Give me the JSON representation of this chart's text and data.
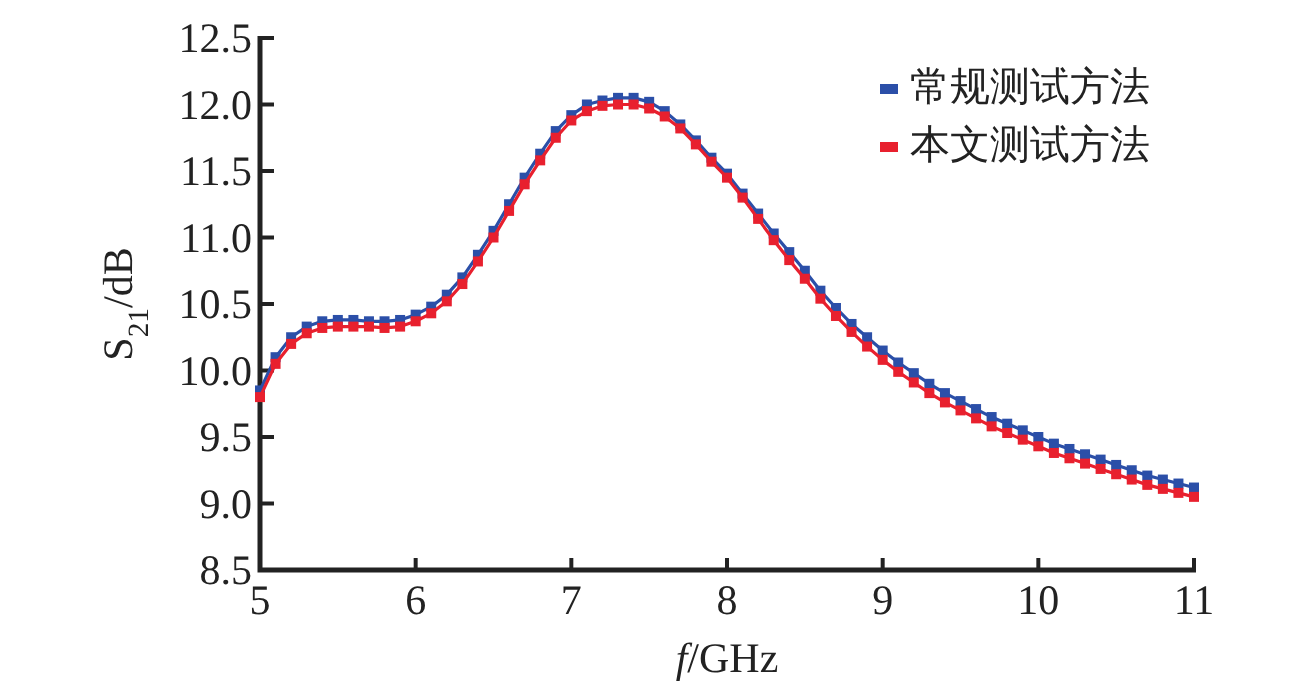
{
  "chart_data": {
    "type": "line",
    "xlabel": "*f*/GHz",
    "ylabel": "S$_{21}$/dB",
    "xlim": [
      5,
      11
    ],
    "ylim": [
      8.5,
      12.5
    ],
    "xticks": [
      5,
      6,
      7,
      8,
      9,
      10,
      11
    ],
    "yticks": [
      8.5,
      {
        "value": 9,
        "label": "9.0"
      },
      9.5,
      {
        "value": 10,
        "label": "10.0"
      },
      10.5,
      {
        "value": 11,
        "label": "11.0"
      },
      11.5,
      {
        "value": 12,
        "label": "12.0"
      },
      12.5
    ],
    "x": [
      5.0,
      5.1,
      5.2,
      5.3,
      5.4,
      5.5,
      5.6,
      5.7,
      5.8,
      5.9,
      6.0,
      6.1,
      6.2,
      6.3,
      6.4,
      6.5,
      6.6,
      6.7,
      6.8,
      6.9,
      7.0,
      7.1,
      7.2,
      7.3,
      7.4,
      7.5,
      7.6,
      7.7,
      7.8,
      7.9,
      8.0,
      8.1,
      8.2,
      8.3,
      8.4,
      8.5,
      8.6,
      8.7,
      8.8,
      8.9,
      9.0,
      9.1,
      9.2,
      9.3,
      9.4,
      9.5,
      9.6,
      9.7,
      9.8,
      9.9,
      10.0,
      10.1,
      10.2,
      10.3,
      10.4,
      10.5,
      10.6,
      10.7,
      10.8,
      10.9,
      11.0
    ],
    "series": [
      {
        "name": "常规测试方法",
        "color": "#2b4fa8",
        "values": [
          9.85,
          10.1,
          10.25,
          10.33,
          10.37,
          10.38,
          10.38,
          10.37,
          10.37,
          10.38,
          10.42,
          10.48,
          10.57,
          10.7,
          10.87,
          11.05,
          11.25,
          11.45,
          11.63,
          11.8,
          11.92,
          12.0,
          12.03,
          12.05,
          12.05,
          12.02,
          11.95,
          11.85,
          11.73,
          11.6,
          11.48,
          11.33,
          11.18,
          11.03,
          10.89,
          10.75,
          10.6,
          10.47,
          10.35,
          10.25,
          10.15,
          10.06,
          9.98,
          9.9,
          9.83,
          9.77,
          9.71,
          9.65,
          9.6,
          9.55,
          9.5,
          9.45,
          9.41,
          9.37,
          9.33,
          9.29,
          9.25,
          9.21,
          9.18,
          9.15,
          9.12
        ]
      },
      {
        "name": "本文测试方法",
        "color": "#e8202e",
        "values": [
          9.8,
          10.05,
          10.2,
          10.28,
          10.32,
          10.33,
          10.33,
          10.33,
          10.32,
          10.33,
          10.37,
          10.43,
          10.52,
          10.65,
          10.82,
          11.0,
          11.2,
          11.4,
          11.58,
          11.75,
          11.88,
          11.95,
          11.99,
          12.0,
          12.0,
          11.97,
          11.91,
          11.82,
          11.7,
          11.57,
          11.45,
          11.3,
          11.14,
          10.98,
          10.83,
          10.69,
          10.54,
          10.41,
          10.29,
          10.18,
          10.08,
          9.99,
          9.91,
          9.83,
          9.76,
          9.7,
          9.64,
          9.58,
          9.53,
          9.48,
          9.43,
          9.38,
          9.34,
          9.3,
          9.26,
          9.22,
          9.18,
          9.14,
          9.11,
          9.08,
          9.05
        ]
      }
    ],
    "marker": "square",
    "line_style": "solid",
    "legend": "top right"
  }
}
